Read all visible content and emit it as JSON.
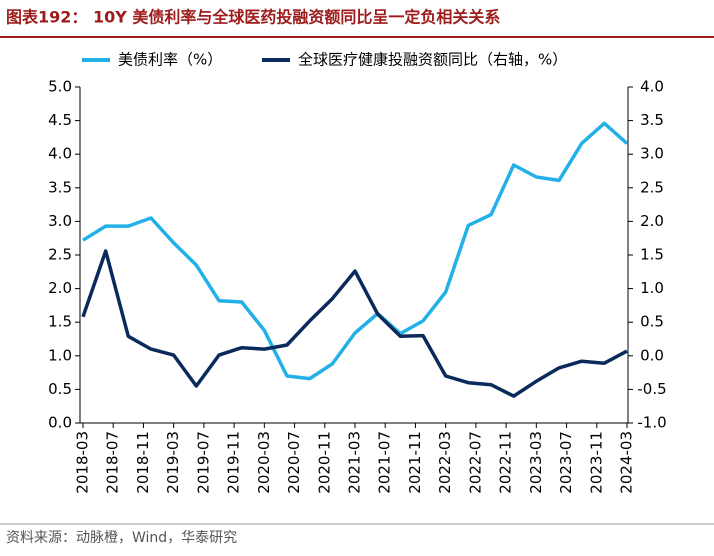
{
  "chart_data": {
    "type": "line",
    "title": "图表192： 10Y 美债利率与全球医药投融资额同比呈一定负相关关系",
    "source": "资料来源：动脉橙，Wind，华泰研究",
    "x": [
      "2018-03",
      "2018-06",
      "2018-09",
      "2018-12",
      "2019-03",
      "2019-06",
      "2019-09",
      "2019-12",
      "2020-03",
      "2020-06",
      "2020-09",
      "2020-12",
      "2021-03",
      "2021-06",
      "2021-09",
      "2021-12",
      "2022-03",
      "2022-06",
      "2022-09",
      "2022-12",
      "2023-03",
      "2023-06",
      "2023-09",
      "2023-12",
      "2024-03"
    ],
    "xticks": [
      "2018-03",
      "2018-07",
      "2018-11",
      "2019-03",
      "2019-07",
      "2019-11",
      "2020-03",
      "2020-07",
      "2020-11",
      "2021-03",
      "2021-07",
      "2021-11",
      "2022-03",
      "2022-07",
      "2022-11",
      "2023-03",
      "2023-07",
      "2023-11",
      "2024-03"
    ],
    "series": [
      {
        "name": "美债利率（%）",
        "color": "#21b0e8",
        "values": [
          2.72,
          2.93,
          2.93,
          3.05,
          2.68,
          2.35,
          1.82,
          1.8,
          1.38,
          0.7,
          0.66,
          0.88,
          1.34,
          1.63,
          1.33,
          1.52,
          1.95,
          2.94,
          3.1,
          3.84,
          3.66,
          3.61,
          4.16,
          4.46,
          4.16
        ]
      },
      {
        "name": "全球医疗健康投融资额同比（右轴，%）",
        "color": "#0b2a5c",
        "axis": "y2",
        "values": [
          0.58,
          1.56,
          0.29,
          0.1,
          0.01,
          -0.45,
          0.01,
          0.12,
          0.1,
          0.16,
          0.52,
          0.85,
          1.26,
          0.62,
          0.29,
          0.3,
          -0.3,
          -0.4,
          -0.43,
          -0.6,
          -0.38,
          -0.18,
          -0.08,
          -0.11,
          0.07
        ]
      }
    ],
    "ylim": [
      0,
      5
    ],
    "yticks": [
      {
        "value": 0,
        "label": "0.0"
      },
      0.5,
      {
        "value": 1,
        "label": "1.0"
      },
      1.5,
      {
        "value": 2,
        "label": "2.0"
      },
      2.5,
      {
        "value": 3,
        "label": "3.0"
      },
      3.5,
      {
        "value": 4,
        "label": "4.0"
      },
      4.5,
      {
        "value": 5,
        "label": "5.0"
      }
    ],
    "y2lim": [
      -1,
      4
    ],
    "y2ticks": [
      {
        "value": -1,
        "label": "-1.0"
      },
      -0.5,
      {
        "value": 0,
        "label": "0.0"
      },
      0.5,
      {
        "value": 1,
        "label": "1.0"
      },
      1.5,
      {
        "value": 2,
        "label": "2.0"
      },
      2.5,
      {
        "value": 3,
        "label": "3.0"
      },
      3.5,
      {
        "value": 4,
        "label": "4.0"
      }
    ],
    "legend": "top"
  }
}
